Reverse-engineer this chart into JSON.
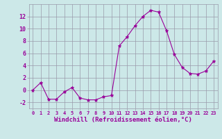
{
  "x": [
    0,
    1,
    2,
    3,
    4,
    5,
    6,
    7,
    8,
    9,
    10,
    11,
    12,
    13,
    14,
    15,
    16,
    17,
    18,
    19,
    20,
    21,
    22,
    23
  ],
  "y": [
    0,
    1.2,
    -1.5,
    -1.5,
    -0.3,
    0.4,
    -1.3,
    -1.6,
    -1.6,
    -1.1,
    -0.9,
    7.2,
    8.7,
    10.5,
    12.0,
    13.0,
    12.7,
    9.7,
    5.8,
    3.7,
    2.7,
    2.6,
    3.1,
    4.7
  ],
  "line_color": "#990099",
  "marker_color": "#990099",
  "bg_color": "#cce8e8",
  "grid_color": "#9999aa",
  "xlabel": "Windchill (Refroidissement éolien,°C)",
  "tick_color": "#990099",
  "yticks": [
    -2,
    0,
    2,
    4,
    6,
    8,
    10,
    12
  ],
  "ylim": [
    -3.0,
    14.0
  ],
  "xlim": [
    -0.5,
    23.5
  ],
  "xtick_fontsize": 5.0,
  "ytick_fontsize": 6.0,
  "xlabel_fontsize": 6.5
}
